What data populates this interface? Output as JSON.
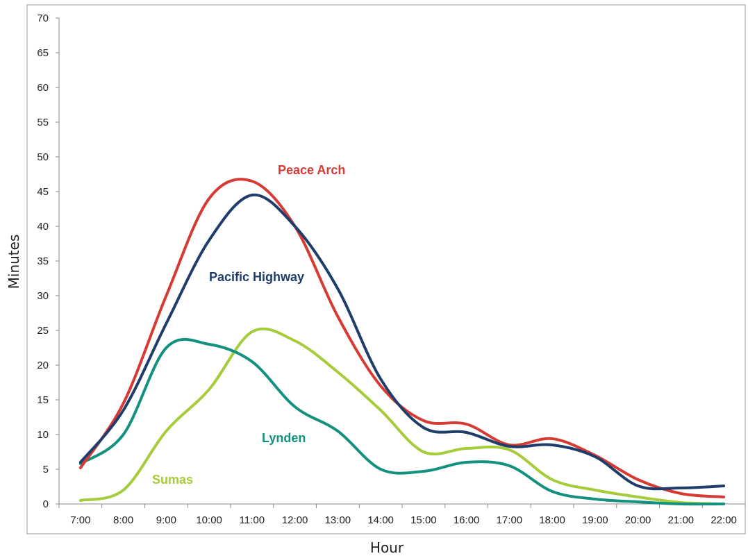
{
  "chart_data": {
    "type": "line",
    "title": "",
    "xlabel": "Hour",
    "ylabel": "Minutes",
    "ylim": [
      0,
      70
    ],
    "yticks": [
      0,
      5,
      10,
      15,
      20,
      25,
      30,
      35,
      40,
      45,
      50,
      55,
      60,
      65,
      70
    ],
    "categories": [
      "7:00",
      "8:00",
      "9:00",
      "10:00",
      "11:00",
      "12:00",
      "13:00",
      "14:00",
      "15:00",
      "16:00",
      "17:00",
      "18:00",
      "19:00",
      "20:00",
      "21:00",
      "22:00"
    ],
    "grid": false,
    "legend": "inline labels",
    "series": [
      {
        "name": "Peace Arch",
        "color": "#d63a35",
        "values": [
          5.2,
          14.5,
          30,
          44,
          46.5,
          40,
          27,
          17,
          12,
          11.5,
          8.5,
          9.4,
          7,
          3.5,
          1.5,
          1.0
        ]
      },
      {
        "name": "Pacific Highway",
        "color": "#1f3d6b",
        "values": [
          6.0,
          13.5,
          26,
          38,
          44.5,
          40,
          31,
          18,
          11,
          10.3,
          8.3,
          8.5,
          6.8,
          2.6,
          2.3,
          2.6
        ]
      },
      {
        "name": "Lynden",
        "color": "#12917f",
        "values": [
          5.8,
          10.0,
          22.5,
          23,
          20.5,
          14,
          10.5,
          5,
          4.7,
          6.0,
          5.5,
          1.8,
          0.7,
          0.3,
          0.0,
          0.0
        ]
      },
      {
        "name": "Sumas",
        "color": "#a6cb3b",
        "values": [
          0.5,
          2.0,
          10.5,
          16.5,
          24.8,
          23.5,
          19,
          13.5,
          7.5,
          8.0,
          7.8,
          3.5,
          2.0,
          1.0,
          0.2,
          0.0
        ]
      }
    ]
  }
}
